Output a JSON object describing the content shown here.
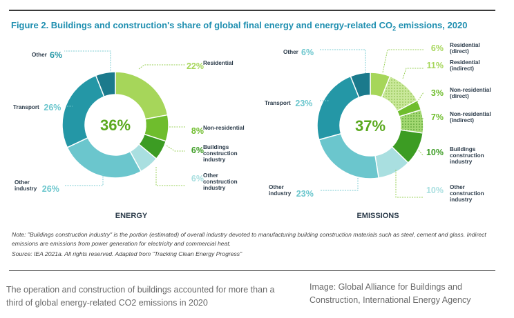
{
  "figure": {
    "title_main": "Figure 2. Buildings and construction's share of global final energy and energy-related CO",
    "title_sub": "2",
    "title_end": " emissions, 2020",
    "note": "Note: \"Buildings construction industry\" is the portion (estimated) of overall industry devoted to manufacturing building construction materials such as steel, cement and glass. Indirect emissions are emissions from power generation for electricity and commercial heat.",
    "source": "Source: IEA 2021a. All rights reserved. Adapted from \"Tracking Clean Energy Progress\""
  },
  "caption": "The operation and construction of buildings accounted for more than a third of global energy-related CO2 emissions in 2020",
  "credit": "Image: Global Alliance for Buildings and Construction, International Energy Agency",
  "colors": {
    "residential": "#a6d65a",
    "non_residential": "#6fbd2d",
    "buildings_construction": "#3c9c23",
    "other_construction": "#a9dfe0",
    "other_industry": "#6bc6cd",
    "transport": "#2497a6",
    "other": "#1b7a8c",
    "center_green": "#5aa91e",
    "label_dark": "#2b3b4a"
  },
  "chart_data": [
    {
      "type": "pie",
      "variant": "donut",
      "title": "ENERGY",
      "center_label": "36%",
      "slices": [
        {
          "key": "residential",
          "label": "Residential",
          "value": 22,
          "display": "22%",
          "color_key": "residential"
        },
        {
          "key": "non_residential",
          "label": "Non-residential",
          "value": 8,
          "display": "8%",
          "color_key": "non_residential"
        },
        {
          "key": "buildings_construction",
          "label": "Buildings construction industry",
          "value": 6,
          "display": "6%",
          "color_key": "buildings_construction"
        },
        {
          "key": "other_construction",
          "label": "Other construction industry",
          "value": 6,
          "display": "6%",
          "color_key": "other_construction"
        },
        {
          "key": "other_industry",
          "label": "Other industry",
          "value": 26,
          "display": "26%",
          "color_key": "other_industry"
        },
        {
          "key": "transport",
          "label": "Transport",
          "value": 26,
          "display": "26%",
          "color_key": "transport"
        },
        {
          "key": "other",
          "label": "Other",
          "value": 6,
          "display": "6%",
          "color_key": "other"
        }
      ]
    },
    {
      "type": "pie",
      "variant": "donut",
      "title": "EMISSIONS",
      "center_label": "37%",
      "slices": [
        {
          "key": "residential_direct",
          "label": "Residential (direct)",
          "value": 6,
          "display": "6%",
          "color_key": "residential"
        },
        {
          "key": "residential_indirect",
          "label": "Residential (indirect)",
          "value": 11,
          "display": "11%",
          "color_key": "residential",
          "pattern": "dots"
        },
        {
          "key": "non_residential_direct",
          "label": "Non-residential (direct)",
          "value": 3,
          "display": "3%",
          "color_key": "non_residential"
        },
        {
          "key": "non_residential_indirect",
          "label": "Non-residential (indirect)",
          "value": 7,
          "display": "7%",
          "color_key": "non_residential",
          "pattern": "dots"
        },
        {
          "key": "buildings_construction",
          "label": "Buildings construction industry",
          "value": 10,
          "display": "10%",
          "color_key": "buildings_construction"
        },
        {
          "key": "other_construction",
          "label": "Other construction industry",
          "value": 10,
          "display": "10%",
          "color_key": "other_construction"
        },
        {
          "key": "other_industry",
          "label": "Other industry",
          "value": 23,
          "display": "23%",
          "color_key": "other_industry"
        },
        {
          "key": "transport",
          "label": "Transport",
          "value": 23,
          "display": "23%",
          "color_key": "transport"
        },
        {
          "key": "other",
          "label": "Other",
          "value": 6,
          "display": "6%",
          "color_key": "other"
        }
      ]
    }
  ]
}
